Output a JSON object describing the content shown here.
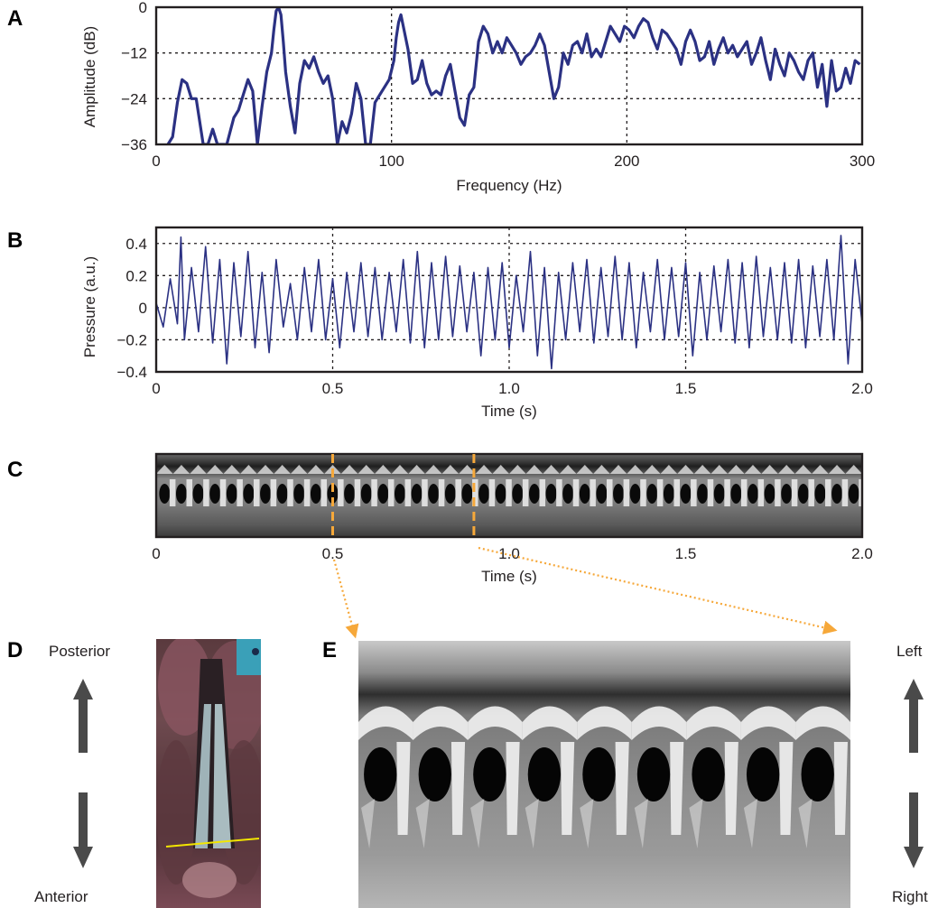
{
  "panels": {
    "a": {
      "letter": "A"
    },
    "b": {
      "letter": "B"
    },
    "c": {
      "letter": "C"
    },
    "d": {
      "letter": "D",
      "top_label": "Posterior",
      "bottom_label": "Anterior"
    },
    "e": {
      "letter": "E",
      "top_label": "Left",
      "bottom_label": "Right"
    }
  },
  "colors": {
    "trace": "#2b3183",
    "highlight": "#f6a83a",
    "arrow": "#4a4a4a",
    "laser_line": "#f2e600"
  },
  "chart_data": [
    {
      "panel": "A",
      "type": "line",
      "xlabel": "Frequency (Hz)",
      "ylabel": "Amplitude (dB)",
      "xlim": [
        0,
        300
      ],
      "ylim": [
        -36,
        0
      ],
      "xticks": [
        0,
        100,
        200,
        300
      ],
      "xtick_labels": [
        "0",
        "100",
        "200",
        "300"
      ],
      "yticks": [
        0,
        -12,
        -24,
        -36
      ],
      "ytick_labels": [
        "0",
        "−12",
        "−24",
        "−36"
      ],
      "grid": true,
      "series": [
        {
          "x": [
            5,
            7,
            9,
            11,
            13,
            15,
            17,
            20,
            22,
            24,
            26,
            28,
            30,
            33,
            35,
            37,
            39,
            41,
            43,
            45,
            47,
            49,
            50,
            51,
            52,
            53,
            54,
            55,
            57,
            59,
            61,
            63,
            65,
            67,
            69,
            71,
            73,
            75,
            77,
            79,
            81,
            83,
            85,
            87,
            89,
            91,
            93,
            95,
            97,
            99,
            101,
            102,
            103,
            104,
            105,
            107,
            109,
            111,
            113,
            115,
            117,
            119,
            121,
            123,
            125,
            127,
            129,
            131,
            133,
            135,
            137,
            139,
            141,
            143,
            145,
            147,
            149,
            151,
            153,
            155,
            157,
            159,
            161,
            163,
            165,
            167,
            169,
            171,
            173,
            175,
            177,
            179,
            181,
            183,
            185,
            187,
            189,
            191,
            193,
            195,
            197,
            199,
            201,
            203,
            205,
            207,
            209,
            211,
            213,
            215,
            217,
            219,
            221,
            223,
            225,
            227,
            229,
            231,
            233,
            235,
            237,
            239,
            241,
            243,
            245,
            247,
            249,
            251,
            253,
            255,
            257,
            259,
            261,
            263,
            265,
            267,
            269,
            271,
            273,
            275,
            277,
            279,
            281,
            283,
            285,
            287,
            289,
            291,
            293,
            295,
            297,
            299
          ],
          "y": [
            -36,
            -34,
            -25,
            -19,
            -20,
            -24,
            -24,
            -36,
            -36,
            -32,
            -36,
            -36,
            -36,
            -29,
            -27,
            -23,
            -19,
            -22,
            -36,
            -26,
            -17,
            -12,
            -6,
            -1,
            0,
            -2,
            -9,
            -17,
            -26,
            -33,
            -20,
            -14,
            -16,
            -13,
            -17,
            -20,
            -18,
            -24,
            -36,
            -30,
            -33,
            -28,
            -20,
            -24,
            -36,
            -36,
            -25,
            -23,
            -21,
            -19,
            -14,
            -8,
            -4,
            -2,
            -5,
            -11,
            -20,
            -19,
            -14,
            -20,
            -23,
            -22,
            -23,
            -18,
            -15,
            -22,
            -29,
            -31,
            -23,
            -21,
            -9,
            -5,
            -7,
            -12,
            -9,
            -12,
            -8,
            -10,
            -12,
            -15,
            -13,
            -12,
            -10,
            -7,
            -10,
            -17,
            -24,
            -21,
            -12,
            -15,
            -10,
            -9,
            -12,
            -7,
            -13,
            -11,
            -13,
            -9,
            -5,
            -7,
            -9,
            -5,
            -6,
            -8,
            -5,
            -3,
            -4,
            -8,
            -11,
            -6,
            -7,
            -9,
            -11,
            -15,
            -9,
            -6,
            -9,
            -14,
            -13,
            -9,
            -15,
            -11,
            -8,
            -12,
            -10,
            -13,
            -11,
            -9,
            -15,
            -12,
            -8,
            -14,
            -19,
            -11,
            -15,
            -18,
            -12,
            -14,
            -17,
            -19,
            -14,
            -12,
            -21,
            -15,
            -26,
            -14,
            -22,
            -21,
            -16,
            -20,
            -14,
            -15
          ]
        }
      ]
    },
    {
      "panel": "B",
      "type": "line",
      "xlabel": "Time (s)",
      "ylabel": "Pressure (a.u.)",
      "xlim": [
        0,
        2.0
      ],
      "ylim": [
        -0.4,
        0.5
      ],
      "xticks": [
        0,
        0.5,
        1.0,
        1.5,
        2.0
      ],
      "xtick_labels": [
        "0",
        "0.5",
        "1.0",
        "1.5",
        "2.0"
      ],
      "yticks": [
        0.4,
        0.2,
        0,
        -0.2,
        -0.4
      ],
      "ytick_labels": [
        "0.4",
        "0.2",
        "0",
        "−0.2",
        "−0.4"
      ],
      "grid": true,
      "series": [
        {
          "x": [
            0,
            0.02,
            0.04,
            0.06,
            0.07,
            0.08,
            0.1,
            0.12,
            0.14,
            0.16,
            0.18,
            0.2,
            0.22,
            0.24,
            0.26,
            0.28,
            0.3,
            0.32,
            0.34,
            0.36,
            0.38,
            0.4,
            0.42,
            0.44,
            0.46,
            0.48,
            0.5,
            0.52,
            0.54,
            0.56,
            0.58,
            0.6,
            0.62,
            0.64,
            0.66,
            0.68,
            0.7,
            0.72,
            0.74,
            0.76,
            0.78,
            0.8,
            0.82,
            0.84,
            0.86,
            0.88,
            0.9,
            0.92,
            0.94,
            0.96,
            0.98,
            1.0,
            1.02,
            1.04,
            1.06,
            1.08,
            1.1,
            1.12,
            1.14,
            1.16,
            1.18,
            1.2,
            1.22,
            1.24,
            1.26,
            1.28,
            1.3,
            1.32,
            1.34,
            1.36,
            1.38,
            1.4,
            1.42,
            1.44,
            1.46,
            1.48,
            1.5,
            1.52,
            1.54,
            1.56,
            1.58,
            1.6,
            1.62,
            1.64,
            1.66,
            1.68,
            1.7,
            1.72,
            1.74,
            1.76,
            1.78,
            1.8,
            1.82,
            1.84,
            1.86,
            1.88,
            1.9,
            1.92,
            1.94,
            1.96,
            1.98,
            2.0
          ],
          "y": [
            0.03,
            -0.12,
            0.18,
            -0.1,
            0.44,
            -0.2,
            0.25,
            -0.15,
            0.38,
            -0.22,
            0.3,
            -0.35,
            0.28,
            -0.18,
            0.35,
            -0.25,
            0.22,
            -0.28,
            0.3,
            -0.12,
            0.15,
            -0.2,
            0.25,
            -0.15,
            0.3,
            -0.2,
            0.18,
            -0.25,
            0.22,
            -0.15,
            0.28,
            -0.18,
            0.25,
            -0.2,
            0.22,
            -0.15,
            0.3,
            -0.22,
            0.35,
            -0.25,
            0.28,
            -0.2,
            0.32,
            -0.18,
            0.26,
            -0.15,
            0.22,
            -0.3,
            0.25,
            -0.2,
            0.28,
            -0.25,
            0.2,
            -0.15,
            0.35,
            -0.3,
            0.25,
            -0.38,
            0.22,
            -0.2,
            0.28,
            -0.15,
            0.3,
            -0.22,
            0.25,
            -0.18,
            0.32,
            -0.2,
            0.28,
            -0.25,
            0.22,
            -0.15,
            0.3,
            -0.2,
            0.25,
            -0.18,
            0.28,
            -0.3,
            0.22,
            -0.2,
            0.26,
            -0.15,
            0.3,
            -0.22,
            0.28,
            -0.25,
            0.32,
            -0.18,
            0.25,
            -0.2,
            0.28,
            -0.22,
            0.3,
            -0.25,
            0.26,
            -0.18,
            0.3,
            -0.2,
            0.45,
            -0.35,
            0.3,
            -0.1
          ]
        }
      ]
    }
  ],
  "panel_c": {
    "xlabel": "Time (s)",
    "xlim": [
      0,
      2.0
    ],
    "xticks": [
      0,
      0.5,
      1.0,
      1.5,
      2.0
    ],
    "xtick_labels": [
      "0",
      "0.5",
      "1.0",
      "1.5",
      "2.0"
    ],
    "markers_s": [
      0.5,
      0.9
    ],
    "cycles_per_second": 21
  }
}
